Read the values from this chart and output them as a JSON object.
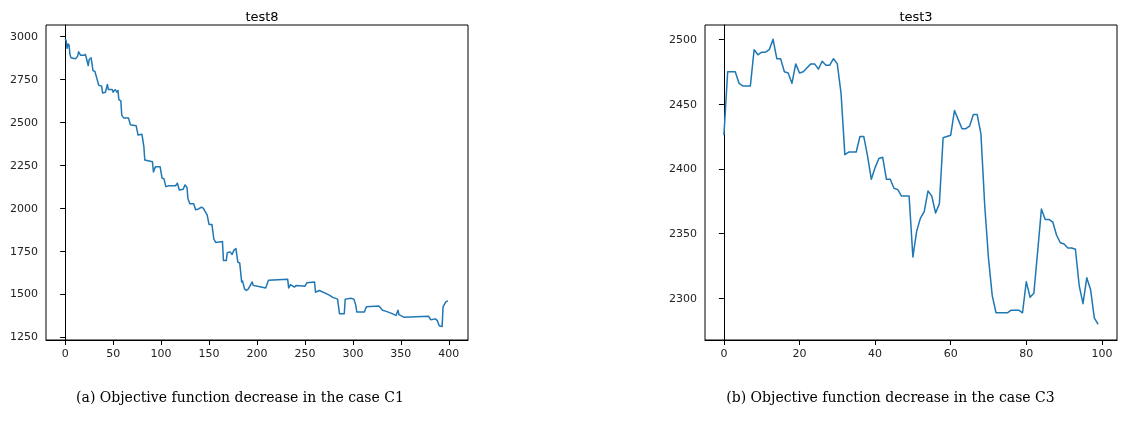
{
  "chart_data": [
    {
      "type": "line",
      "title": "test8",
      "color": "#1f77b4",
      "marker": "none",
      "xlim": [
        -20,
        420
      ],
      "ylim": [
        1232,
        3066
      ],
      "xticks": [
        0,
        50,
        100,
        150,
        200,
        250,
        300,
        350,
        400
      ],
      "yticks": [
        1250,
        1500,
        1750,
        2000,
        2250,
        2500,
        2750,
        3000
      ],
      "annotations": [
        "(a) Objective function decrease in the case C1"
      ],
      "x": [
        0,
        1,
        2,
        3,
        4,
        5,
        6,
        11,
        13,
        14,
        16,
        20,
        21,
        22,
        24,
        25,
        27,
        28,
        29,
        31,
        33,
        35,
        38,
        39,
        42,
        44,
        45,
        49,
        50,
        52,
        54,
        55,
        56,
        58,
        59,
        61,
        66,
        68,
        74,
        76,
        80,
        82,
        83,
        91,
        92,
        94,
        99,
        101,
        103,
        105,
        108,
        115,
        117,
        119,
        123,
        125,
        127,
        128,
        130,
        134,
        136,
        139,
        142,
        144,
        146,
        148,
        150,
        153,
        155,
        157,
        164,
        165,
        168,
        169,
        172,
        174,
        176,
        178,
        180,
        182,
        184,
        185,
        187,
        189,
        191,
        195,
        196,
        209,
        212,
        232,
        233,
        235,
        239,
        241,
        250,
        252,
        260,
        261,
        265,
        275,
        279,
        284,
        286,
        291,
        292,
        298,
        301,
        303,
        304,
        312,
        314,
        327,
        331,
        334,
        339,
        345,
        347,
        348,
        353,
        379,
        381,
        386,
        388,
        390,
        393,
        394,
        397,
        399
      ],
      "values": [
        2985,
        2975,
        2930,
        2955,
        2950,
        2895,
        2875,
        2870,
        2885,
        2910,
        2890,
        2890,
        2895,
        2875,
        2830,
        2865,
        2875,
        2840,
        2800,
        2795,
        2755,
        2715,
        2710,
        2670,
        2675,
        2720,
        2690,
        2690,
        2675,
        2690,
        2675,
        2685,
        2630,
        2625,
        2540,
        2525,
        2525,
        2485,
        2480,
        2425,
        2430,
        2360,
        2280,
        2270,
        2210,
        2240,
        2240,
        2175,
        2170,
        2125,
        2130,
        2130,
        2145,
        2105,
        2110,
        2135,
        2120,
        2055,
        2025,
        2025,
        1990,
        1995,
        2005,
        2000,
        1980,
        1960,
        1905,
        1905,
        1820,
        1800,
        1805,
        1695,
        1695,
        1740,
        1745,
        1730,
        1755,
        1765,
        1685,
        1680,
        1570,
        1575,
        1530,
        1520,
        1530,
        1570,
        1550,
        1535,
        1580,
        1585,
        1535,
        1555,
        1540,
        1550,
        1545,
        1565,
        1570,
        1510,
        1520,
        1495,
        1480,
        1470,
        1385,
        1385,
        1470,
        1475,
        1470,
        1435,
        1395,
        1395,
        1425,
        1430,
        1405,
        1400,
        1390,
        1375,
        1405,
        1380,
        1365,
        1370,
        1350,
        1355,
        1345,
        1315,
        1310,
        1425,
        1455,
        1460
      ]
    },
    {
      "type": "line",
      "title": "test3",
      "color": "#1f77b4",
      "marker": "none",
      "xlim": [
        -5,
        104
      ],
      "ylim": [
        2268,
        2511
      ],
      "xticks": [
        0,
        20,
        40,
        60,
        80,
        100
      ],
      "yticks": [
        2300,
        2350,
        2400,
        2450,
        2500
      ],
      "annotations": [
        "(b) Objective function decrease in the case C3"
      ],
      "x": [
        0,
        1,
        2,
        3,
        4,
        5,
        6,
        7,
        8,
        9,
        10,
        11,
        12,
        13,
        14,
        15,
        16,
        17,
        18,
        19,
        20,
        21,
        22,
        23,
        24,
        25,
        26,
        27,
        28,
        29,
        30,
        31,
        32,
        33,
        34,
        35,
        36,
        37,
        38,
        39,
        40,
        41,
        42,
        43,
        44,
        45,
        46,
        47,
        48,
        49,
        50,
        51,
        52,
        53,
        54,
        55,
        56,
        57,
        58,
        59,
        60,
        61,
        62,
        63,
        64,
        65,
        66,
        67,
        68,
        69,
        70,
        71,
        72,
        73,
        74,
        75,
        76,
        77,
        78,
        79,
        80,
        81,
        82,
        83,
        84,
        85,
        86,
        87,
        88,
        89,
        90,
        91,
        92,
        93,
        94,
        95,
        96,
        97,
        98,
        99
      ],
      "values": [
        2426,
        2475,
        2475,
        2475,
        2466,
        2464,
        2464,
        2464,
        2492,
        2488,
        2490,
        2490,
        2492,
        2500,
        2485,
        2485,
        2475,
        2474,
        2466,
        2481,
        2474,
        2475,
        2478,
        2481,
        2481,
        2477,
        2483,
        2480,
        2480,
        2485,
        2481,
        2458,
        2411,
        2413,
        2413,
        2413,
        2425,
        2425,
        2410,
        2392,
        2401,
        2408,
        2409,
        2392,
        2392,
        2385,
        2384,
        2379,
        2379,
        2379,
        2332,
        2352,
        2362,
        2367,
        2383,
        2379,
        2366,
        2373,
        2424,
        2425,
        2426,
        2445,
        2438,
        2431,
        2431,
        2433,
        2442,
        2442,
        2427,
        2372,
        2331,
        2302,
        2289,
        2289,
        2289,
        2289,
        2291,
        2291,
        2291,
        2289,
        2313,
        2301,
        2304,
        2336,
        2369,
        2361,
        2361,
        2359,
        2349,
        2343,
        2342,
        2339,
        2339,
        2338,
        2310,
        2296,
        2316,
        2307,
        2285,
        2280
      ]
    }
  ]
}
